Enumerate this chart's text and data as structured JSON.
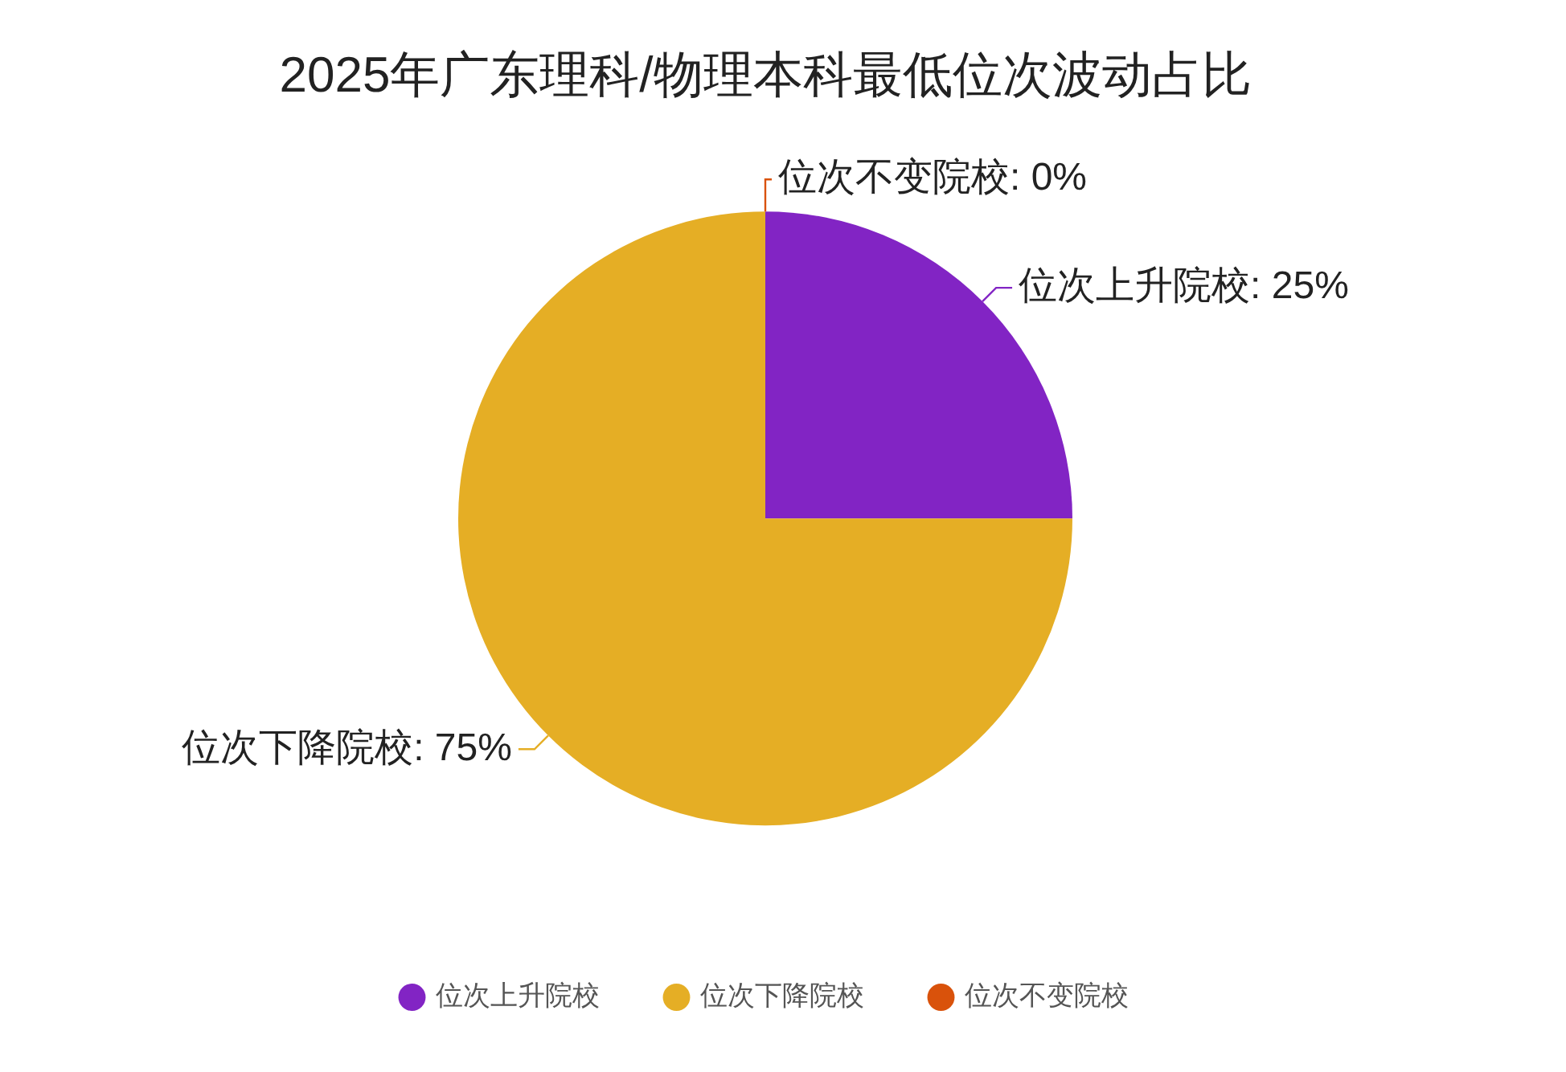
{
  "chart_data": {
    "type": "pie",
    "title": "2025年广东理科/物理本科最低位次波动占比",
    "categories": [
      "位次上升院校",
      "位次下降院校",
      "位次不变院校"
    ],
    "values": [
      25,
      75,
      0
    ],
    "colors": [
      "#8224c4",
      "#e5ae25",
      "#d9520b"
    ],
    "value_labels": [
      "位次上升院校: 25%",
      "位次下降院校: 75%",
      "位次不变院校: 0%"
    ],
    "legend": "bottom",
    "marker": "circle"
  }
}
